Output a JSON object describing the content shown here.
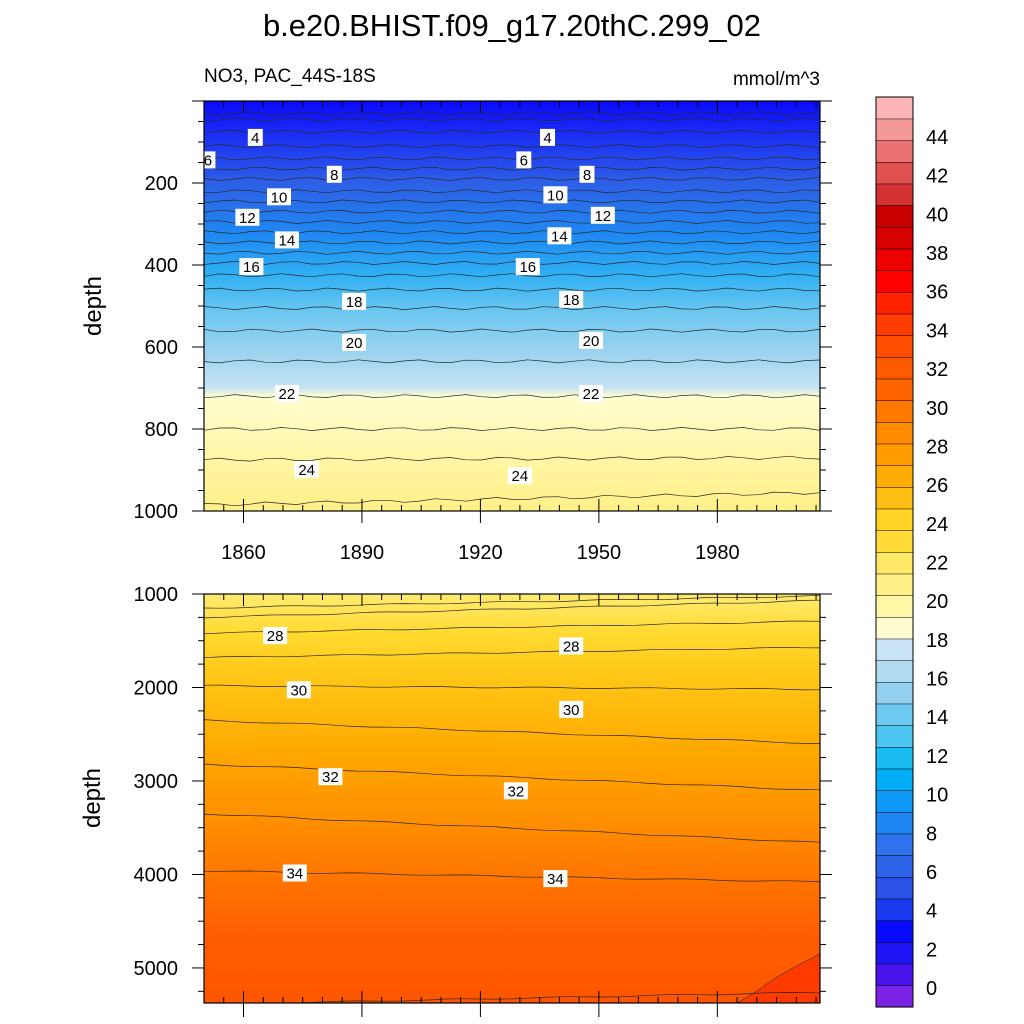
{
  "title": "b.e20.BHIST.f09_g17.20thC.299_02",
  "colorbar": {
    "levels": [
      0,
      2,
      4,
      6,
      8,
      10,
      12,
      14,
      16,
      18,
      20,
      22,
      24,
      26,
      28,
      30,
      32,
      34,
      36,
      38,
      40,
      42,
      44
    ],
    "colors": [
      "#7b22e6",
      "#4a14ee",
      "#1e14f6",
      "#0a0afa",
      "#1a3aef",
      "#2a52e6",
      "#2d63e6",
      "#2f73ec",
      "#1f86f2",
      "#0f99f6",
      "#00adf7",
      "#1abdf2",
      "#4cc6f0",
      "#6ccaf1",
      "#93d0ee",
      "#b0dbf1",
      "#c8e4f6",
      "#fffdd0",
      "#fff6a8",
      "#fff087",
      "#ffe866",
      "#ffdb38",
      "#ffd224",
      "#ffbe14",
      "#ffad05",
      "#ff9c00",
      "#ff8a00",
      "#ff7800",
      "#ff6400",
      "#ff5a00",
      "#ff4e00",
      "#ff3c00",
      "#ff2200",
      "#ff0000",
      "#ec0000",
      "#d80000",
      "#c80000",
      "#d43232",
      "#e05050",
      "#ea7272",
      "#f49898",
      "#fcb6b6"
    ],
    "tick_labels": [
      "0",
      "2",
      "4",
      "6",
      "8",
      "10",
      "12",
      "14",
      "16",
      "18",
      "20",
      "22",
      "24",
      "26",
      "28",
      "30",
      "32",
      "34",
      "36",
      "38",
      "40",
      "42",
      "44"
    ]
  },
  "chart_data": [
    {
      "type": "heatmap",
      "subtitle_left": "NO3, PAC_44S-18S",
      "subtitle_right": "mmol/m^3",
      "ylabel": "depth",
      "xlabel": "",
      "xlim": [
        1850,
        2006
      ],
      "ylim": [
        1000,
        0
      ],
      "x_ticks": [
        "1860",
        "1890",
        "1920",
        "1950",
        "1980"
      ],
      "y_ticks": [
        "200",
        "400",
        "600",
        "800",
        "1000"
      ],
      "contour_lines": [
        {
          "depth_left": 30,
          "depth_right": 30,
          "value": 2
        },
        {
          "depth_left": 45,
          "depth_right": 45,
          "value": 3
        },
        {
          "depth_left": 75,
          "depth_right": 75,
          "value": 4
        },
        {
          "depth_left": 110,
          "depth_right": 110,
          "value": 5
        },
        {
          "depth_left": 140,
          "depth_right": 140,
          "value": 6
        },
        {
          "depth_left": 165,
          "depth_right": 165,
          "value": 7
        },
        {
          "depth_left": 190,
          "depth_right": 190,
          "value": 8
        },
        {
          "depth_left": 220,
          "depth_right": 220,
          "value": 9
        },
        {
          "depth_left": 245,
          "depth_right": 245,
          "value": 10
        },
        {
          "depth_left": 270,
          "depth_right": 270,
          "value": 11
        },
        {
          "depth_left": 295,
          "depth_right": 295,
          "value": 12
        },
        {
          "depth_left": 320,
          "depth_right": 320,
          "value": 13
        },
        {
          "depth_left": 345,
          "depth_right": 345,
          "value": 14
        },
        {
          "depth_left": 370,
          "depth_right": 370,
          "value": 15
        },
        {
          "depth_left": 395,
          "depth_right": 395,
          "value": 16
        },
        {
          "depth_left": 425,
          "depth_right": 425,
          "value": 17
        },
        {
          "depth_left": 460,
          "depth_right": 460,
          "value": 18
        },
        {
          "depth_left": 505,
          "depth_right": 505,
          "value": 19
        },
        {
          "depth_left": 560,
          "depth_right": 560,
          "value": 20
        },
        {
          "depth_left": 635,
          "depth_right": 635,
          "value": 21
        },
        {
          "depth_left": 720,
          "depth_right": 720,
          "value": 22
        },
        {
          "depth_left": 800,
          "depth_right": 800,
          "value": 23
        },
        {
          "depth_left": 875,
          "depth_right": 870,
          "value": 24
        },
        {
          "depth_left": 985,
          "depth_right": 955,
          "value": 25
        }
      ],
      "contour_labels": [
        {
          "text": "4",
          "year": 1863,
          "depth": 90
        },
        {
          "text": "4",
          "year": 1937,
          "depth": 90
        },
        {
          "text": "6",
          "year": 1851,
          "depth": 145
        },
        {
          "text": "6",
          "year": 1931,
          "depth": 145
        },
        {
          "text": "8",
          "year": 1883,
          "depth": 180
        },
        {
          "text": "8",
          "year": 1947,
          "depth": 180
        },
        {
          "text": "10",
          "year": 1869,
          "depth": 235
        },
        {
          "text": "10",
          "year": 1939,
          "depth": 230
        },
        {
          "text": "12",
          "year": 1861,
          "depth": 285
        },
        {
          "text": "12",
          "year": 1951,
          "depth": 280
        },
        {
          "text": "14",
          "year": 1871,
          "depth": 340
        },
        {
          "text": "14",
          "year": 1940,
          "depth": 330
        },
        {
          "text": "16",
          "year": 1862,
          "depth": 405
        },
        {
          "text": "16",
          "year": 1932,
          "depth": 405
        },
        {
          "text": "18",
          "year": 1888,
          "depth": 490
        },
        {
          "text": "18",
          "year": 1943,
          "depth": 485
        },
        {
          "text": "20",
          "year": 1888,
          "depth": 590
        },
        {
          "text": "20",
          "year": 1948,
          "depth": 585
        },
        {
          "text": "22",
          "year": 1871,
          "depth": 715
        },
        {
          "text": "22",
          "year": 1948,
          "depth": 715
        },
        {
          "text": "24",
          "year": 1876,
          "depth": 900
        },
        {
          "text": "24",
          "year": 1930,
          "depth": 915
        }
      ]
    },
    {
      "type": "heatmap",
      "ylabel": "depth",
      "xlabel": "",
      "xlim": [
        1850,
        2006
      ],
      "ylim": [
        5375,
        1000
      ],
      "y_ticks": [
        "1000",
        "2000",
        "3000",
        "4000",
        "5000"
      ],
      "contour_lines": [
        {
          "depth_left": 1150,
          "depth_right": 1020,
          "value": 26
        },
        {
          "depth_left": 1250,
          "depth_right": 1070,
          "value": 26.5
        },
        {
          "depth_left": 1420,
          "depth_right": 1290,
          "value": 27
        },
        {
          "depth_left": 1680,
          "depth_right": 1570,
          "value": 28
        },
        {
          "depth_left": 1980,
          "depth_right": 2020,
          "value": 29
        },
        {
          "depth_left": 2350,
          "depth_right": 2600,
          "value": 30
        },
        {
          "depth_left": 2820,
          "depth_right": 3100,
          "value": 31.5
        },
        {
          "depth_left": 3350,
          "depth_right": 3660,
          "value": 32
        },
        {
          "depth_left": 3960,
          "depth_right": 4080,
          "value": 34
        },
        {
          "depth_left": 5390,
          "depth_right": 5260,
          "value": 35
        }
      ],
      "deep_zone": [
        {
          "year": 1985,
          "depth": 5375
        },
        {
          "year": 1990,
          "depth": 5250
        },
        {
          "year": 1995,
          "depth": 5100
        },
        {
          "year": 2000,
          "depth": 4980
        },
        {
          "year": 2006,
          "depth": 4850
        }
      ],
      "contour_labels": [
        {
          "text": "28",
          "year": 1868,
          "depth": 1450
        },
        {
          "text": "28",
          "year": 1943,
          "depth": 1560
        },
        {
          "text": "30",
          "year": 1874,
          "depth": 2030
        },
        {
          "text": "30",
          "year": 1943,
          "depth": 2240
        },
        {
          "text": "32",
          "year": 1882,
          "depth": 2960
        },
        {
          "text": "32",
          "year": 1929,
          "depth": 3110
        },
        {
          "text": "34",
          "year": 1873,
          "depth": 3990
        },
        {
          "text": "34",
          "year": 1939,
          "depth": 4050
        }
      ]
    }
  ]
}
